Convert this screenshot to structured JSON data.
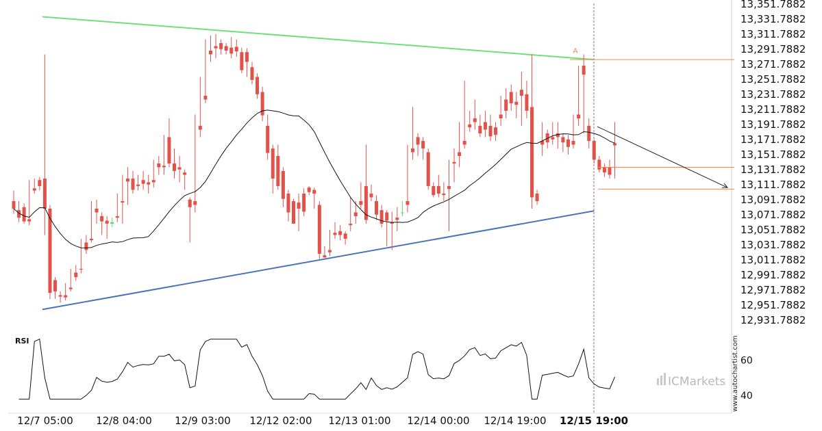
{
  "chart_data": [
    {
      "type": "candlestick",
      "y_ticks": [
        "13,351.7882",
        "13,331.7882",
        "13,311.7882",
        "13,291.7882",
        "13,271.7882",
        "13,251.7882",
        "13,231.7882",
        "13,211.7882",
        "13,191.7882",
        "13,171.7882",
        "13,151.7882",
        "13,131.7882",
        "13,111.7882",
        "13,091.7882",
        "13,071.7882",
        "13,051.7882",
        "13,031.7882",
        "13,011.7882",
        "12,991.7882",
        "12,971.7882",
        "12,951.7882",
        "12,931.7882"
      ],
      "ylim": [
        12931.7882,
        13351.7882
      ],
      "x_ticks": [
        {
          "label": "12/7 05:00",
          "bold": false
        },
        {
          "label": "12/8 04:00",
          "bold": false
        },
        {
          "label": "12/9 03:00",
          "bold": false
        },
        {
          "label": "12/12 02:00",
          "bold": false
        },
        {
          "label": "12/13 01:00",
          "bold": false
        },
        {
          "label": "12/14 00:00",
          "bold": false
        },
        {
          "label": "12/14 19:00",
          "bold": false
        },
        {
          "label": "12/15 19:00",
          "bold": true
        }
      ],
      "colors": {
        "up": "#5fd86a",
        "down": "#e0524a",
        "ma": "#111111",
        "resistance": "#6fe07a",
        "support": "#4a74b8",
        "levels": "#f08a4b",
        "projection": "#222222"
      },
      "resistance_line": {
        "from": [
          0.5,
          13335
        ],
        "to": [
          77.5,
          13278
        ]
      },
      "support_line": {
        "from": [
          0.5,
          12946
        ],
        "to": [
          77.5,
          13077
        ]
      },
      "level_lines": [
        13278,
        13135,
        13106
      ],
      "projection": {
        "from": [
          78,
          13189
        ],
        "to": [
          90,
          13108
        ]
      },
      "marker": {
        "label": "A",
        "value": 13285
      },
      "candles": [
        [
          13090,
          13104,
          13080,
          13073
        ],
        [
          13078,
          13090,
          13068,
          13062
        ],
        [
          13082,
          13087,
          13063,
          13060
        ],
        [
          13066,
          13118,
          13063,
          13058
        ],
        [
          13107,
          13120,
          13104,
          13100
        ],
        [
          13118,
          13122,
          13110,
          13104
        ],
        [
          13120,
          13285,
          13080,
          13045
        ],
        [
          13080,
          13085,
          12968,
          12960
        ],
        [
          12985,
          12989,
          12970,
          12960
        ],
        [
          12965,
          12970,
          12963,
          12955
        ],
        [
          12965,
          12981,
          12962,
          12958
        ],
        [
          12975,
          13000,
          12973,
          12970
        ],
        [
          12995,
          13005,
          12989,
          12984
        ],
        [
          13000,
          13040,
          12999,
          12994
        ],
        [
          13035,
          13045,
          13025,
          13020
        ],
        [
          13040,
          13090,
          13038,
          13035
        ],
        [
          13080,
          13092,
          13075,
          13060
        ],
        [
          13070,
          13075,
          13063,
          13045
        ],
        [
          13064,
          13070,
          13060,
          13040
        ],
        [
          13060,
          13068,
          13062,
          13055
        ],
        [
          13070,
          13100,
          13068,
          13062
        ],
        [
          13090,
          13125,
          13088,
          13060
        ],
        [
          13120,
          13135,
          13116,
          13085
        ],
        [
          13120,
          13130,
          13105,
          13100
        ],
        [
          13112,
          13125,
          13110,
          13104
        ],
        [
          13118,
          13130,
          13113,
          13105
        ],
        [
          13115,
          13125,
          13112,
          13100
        ],
        [
          13118,
          13145,
          13115,
          13108
        ],
        [
          13140,
          13150,
          13135,
          13125
        ],
        [
          13137,
          13178,
          13135,
          13125
        ],
        [
          13175,
          13200,
          13140,
          13135
        ],
        [
          13140,
          13160,
          13130,
          13120
        ],
        [
          13135,
          13150,
          13132,
          13115
        ],
        [
          13128,
          13132,
          13125,
          13105
        ],
        [
          13092,
          13095,
          13082,
          13035
        ],
        [
          13090,
          13205,
          13085,
          13075
        ],
        [
          13190,
          13255,
          13185,
          13175
        ],
        [
          13230,
          13305,
          13225,
          13220
        ],
        [
          13290,
          13310,
          13285,
          13275
        ],
        [
          13296,
          13312,
          13293,
          13280
        ],
        [
          13300,
          13305,
          13292,
          13285
        ],
        [
          13296,
          13300,
          13290,
          13285
        ],
        [
          13294,
          13308,
          13286,
          13280
        ],
        [
          13295,
          13305,
          13289,
          13282
        ],
        [
          13288,
          13294,
          13264,
          13260
        ],
        [
          13288,
          13293,
          13275,
          13255
        ],
        [
          13268,
          13275,
          13251,
          13245
        ],
        [
          13255,
          13260,
          13232,
          13226
        ],
        [
          13235,
          13242,
          13204,
          13196
        ],
        [
          13190,
          13205,
          13154,
          13145
        ],
        [
          13160,
          13165,
          13120,
          13100
        ],
        [
          13150,
          13165,
          13110,
          13105
        ],
        [
          13130,
          13135,
          13093,
          13082
        ],
        [
          13100,
          13105,
          13075,
          13063
        ],
        [
          13090,
          13093,
          13060,
          13070
        ],
        [
          13088,
          13100,
          13080,
          13050
        ],
        [
          13100,
          13107,
          13076,
          13070
        ],
        [
          13108,
          13110,
          13102,
          13098
        ],
        [
          13105,
          13108,
          13100,
          13080
        ],
        [
          13085,
          13090,
          13020,
          13013
        ],
        [
          13018,
          13030,
          13015,
          13015
        ],
        [
          13025,
          13052,
          13022,
          13017
        ],
        [
          13048,
          13062,
          13045,
          13040
        ],
        [
          13050,
          13058,
          13045,
          13038
        ],
        [
          13047,
          13050,
          13040,
          13032
        ],
        [
          13060,
          13095,
          13058,
          13050
        ],
        [
          13075,
          13090,
          13070,
          13060
        ],
        [
          13090,
          13115,
          13085,
          13080
        ],
        [
          13110,
          13165,
          13065,
          13060
        ],
        [
          13100,
          13112,
          13095,
          13090
        ],
        [
          13090,
          13098,
          13072,
          13065
        ],
        [
          13078,
          13085,
          13060,
          13055
        ],
        [
          13075,
          13078,
          13064,
          13030
        ],
        [
          13062,
          13076,
          13060,
          13025
        ],
        [
          13068,
          13082,
          13065,
          13050
        ],
        [
          13075,
          13090,
          13075,
          13070
        ],
        [
          13090,
          13165,
          13085,
          13075
        ],
        [
          13160,
          13215,
          13155,
          13145
        ],
        [
          13175,
          13180,
          13165,
          13150
        ],
        [
          13170,
          13175,
          13160,
          13145
        ],
        [
          13155,
          13160,
          13110,
          13105
        ],
        [
          13110,
          13115,
          13098,
          13095
        ],
        [
          13110,
          13125,
          13100,
          13095
        ],
        [
          13100,
          13115,
          13098,
          13090
        ],
        [
          13110,
          13145,
          13106,
          13050
        ],
        [
          13142,
          13160,
          13140,
          13115
        ],
        [
          13155,
          13195,
          13150,
          13135
        ],
        [
          13170,
          13250,
          13165,
          13160
        ],
        [
          13192,
          13210,
          13188,
          13182
        ],
        [
          13200,
          13225,
          13195,
          13185
        ],
        [
          13190,
          13205,
          13180,
          13175
        ],
        [
          13195,
          13210,
          13185,
          13175
        ],
        [
          13190,
          13205,
          13176,
          13170
        ],
        [
          13188,
          13195,
          13178,
          13170
        ],
        [
          13205,
          13230,
          13200,
          13190
        ],
        [
          13225,
          13240,
          13210,
          13200
        ],
        [
          13235,
          13245,
          13220,
          13210
        ],
        [
          13222,
          13235,
          13218,
          13200
        ],
        [
          13238,
          13262,
          13230,
          13190
        ],
        [
          13232,
          13250,
          13210,
          13200
        ],
        [
          13215,
          13285,
          13095,
          13080
        ],
        [
          13100,
          13105,
          13090,
          13085
        ],
        [
          13170,
          13195,
          13165,
          13150
        ],
        [
          13180,
          13185,
          13168,
          13160
        ],
        [
          13175,
          13195,
          13172,
          13165
        ],
        [
          13180,
          13195,
          13175,
          13160
        ],
        [
          13175,
          13180,
          13168,
          13155
        ],
        [
          13172,
          13178,
          13162,
          13152
        ],
        [
          13170,
          13205,
          13165,
          13160
        ],
        [
          13205,
          13270,
          13200,
          13190
        ],
        [
          13270,
          13285,
          13258,
          13180
        ],
        [
          13190,
          13200,
          13170,
          13160
        ],
        [
          13170,
          13172,
          13145,
          13140
        ],
        [
          13145,
          13150,
          13132,
          13128
        ],
        [
          13135,
          13140,
          13128,
          13122
        ],
        [
          13135,
          13145,
          13125,
          13120
        ],
        [
          13167,
          13195,
          13164,
          13120
        ]
      ]
    },
    {
      "type": "line",
      "title": "RSI",
      "y_ticks": [
        "60",
        "40"
      ],
      "ylim": [
        30,
        75
      ]
    }
  ],
  "watermark": "www.autochartist.com",
  "brand": "ICMarkets"
}
